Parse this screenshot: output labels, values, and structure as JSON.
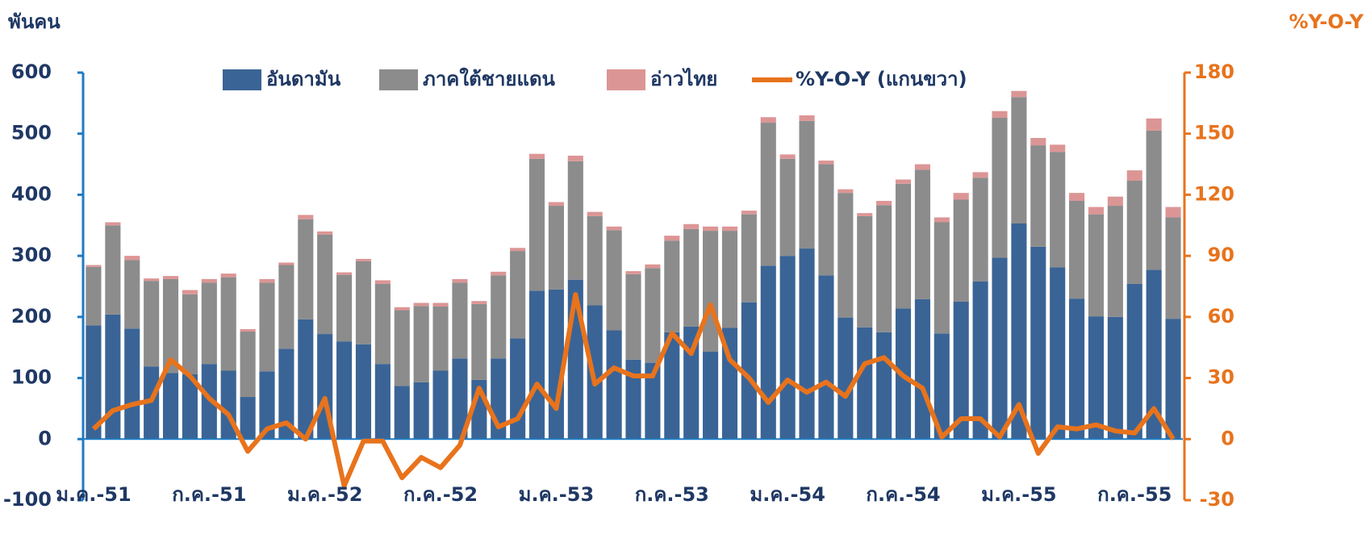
{
  "chart_data": {
    "type": "bar",
    "y_title": "พันคน",
    "y2_title": "%Y-O-Y",
    "categories": [
      "ม.ค.-51",
      null,
      null,
      null,
      null,
      null,
      "ก.ค.-51",
      null,
      null,
      null,
      null,
      null,
      "ม.ค.-52",
      null,
      null,
      null,
      null,
      null,
      "ก.ค.-52",
      null,
      null,
      null,
      null,
      null,
      "ม.ค.-53",
      null,
      null,
      null,
      null,
      null,
      "ก.ค.-53",
      null,
      null,
      null,
      null,
      null,
      "ม.ค.-54",
      null,
      null,
      null,
      null,
      null,
      "ก.ค.-54",
      null,
      null,
      null,
      null,
      null,
      "ม.ค.-55",
      null,
      null,
      null,
      null,
      null,
      "ก.ค.-55",
      null,
      null
    ],
    "series": [
      {
        "name": "อันดามัน",
        "color": "#3a6496",
        "values": [
          186,
          204,
          181,
          119,
          108,
          106,
          123,
          112,
          69,
          111,
          148,
          196,
          172,
          160,
          155,
          123,
          87,
          93,
          112,
          132,
          97,
          132,
          165,
          243,
          245,
          261,
          219,
          178,
          130,
          125,
          175,
          184,
          143,
          182,
          224,
          284,
          300,
          312,
          268,
          199,
          183,
          175,
          214,
          229,
          173,
          225,
          258,
          297,
          353,
          315,
          281,
          230,
          201,
          200,
          254,
          277,
          197
        ]
      },
      {
        "name": "ภาคใต้ชายแดน",
        "color": "#8c8c8c",
        "values": [
          96,
          146,
          112,
          140,
          154,
          131,
          133,
          153,
          107,
          145,
          137,
          164,
          163,
          109,
          136,
          131,
          124,
          125,
          105,
          124,
          124,
          136,
          143,
          216,
          137,
          194,
          146,
          164,
          140,
          155,
          150,
          160,
          198,
          159,
          144,
          234,
          159,
          209,
          182,
          204,
          182,
          208,
          204,
          212,
          182,
          167,
          170,
          229,
          207,
          166,
          189,
          160,
          167,
          182,
          169,
          228,
          166
        ]
      },
      {
        "name": "อ่าวไทย",
        "color": "#dc9595",
        "values": [
          3,
          5,
          7,
          4,
          5,
          7,
          6,
          6,
          4,
          6,
          4,
          7,
          5,
          4,
          4,
          6,
          5,
          5,
          6,
          6,
          5,
          6,
          5,
          8,
          6,
          9,
          7,
          6,
          5,
          6,
          8,
          8,
          7,
          7,
          6,
          9,
          7,
          9,
          6,
          6,
          5,
          7,
          7,
          9,
          8,
          11,
          9,
          11,
          10,
          12,
          12,
          13,
          12,
          15,
          17,
          20,
          17
        ]
      },
      {
        "name": "%Y-O-Y (แกนขวา)",
        "color": "#e8731c",
        "axis": "y2",
        "type": "line",
        "values": [
          5,
          14,
          17,
          19,
          39,
          31,
          20,
          12,
          -6,
          5,
          8,
          0,
          20,
          -23,
          -1,
          -1,
          -19,
          -9,
          -14,
          -3,
          25,
          6,
          10,
          27,
          15,
          71,
          27,
          35,
          31,
          31,
          52,
          42,
          66,
          39,
          30,
          18,
          29,
          23,
          28,
          21,
          37,
          40,
          31,
          25,
          1,
          10,
          10,
          1,
          17,
          -7,
          6,
          5,
          7,
          4,
          3,
          15,
          0
        ]
      }
    ],
    "ylim": [
      -100,
      600
    ],
    "yticks": [
      -100,
      0,
      100,
      200,
      300,
      400,
      500,
      600
    ],
    "y2lim": [
      -30,
      180
    ],
    "y2ticks": [
      -30,
      0,
      30,
      60,
      90,
      120,
      150,
      180
    ],
    "legend": "top",
    "stacked": true
  }
}
